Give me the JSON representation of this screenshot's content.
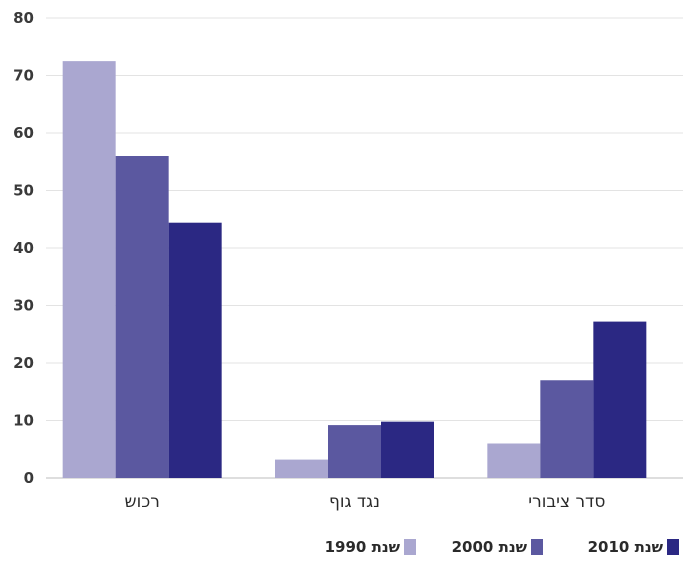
{
  "chart_data": {
    "type": "bar",
    "categories": [
      "סדר ציבורי",
      "נגד גוף",
      "רכוש"
    ],
    "series": [
      {
        "name": "שנת 1990",
        "color": "#aaa7d0",
        "values": [
          6,
          3.2,
          72.5
        ]
      },
      {
        "name": "שנת 2000",
        "color": "#5b58a0",
        "values": [
          17,
          9.2,
          56
        ]
      },
      {
        "name": "שנת 2010",
        "color": "#2b2883",
        "values": [
          27.2,
          9.8,
          44.4
        ]
      }
    ],
    "ylim": [
      0,
      80
    ],
    "yticks": [
      0,
      10,
      20,
      30,
      40,
      50,
      60,
      70,
      80
    ],
    "grid": true,
    "legend_position": "bottom-right",
    "title": "",
    "xlabel": "",
    "ylabel": ""
  }
}
